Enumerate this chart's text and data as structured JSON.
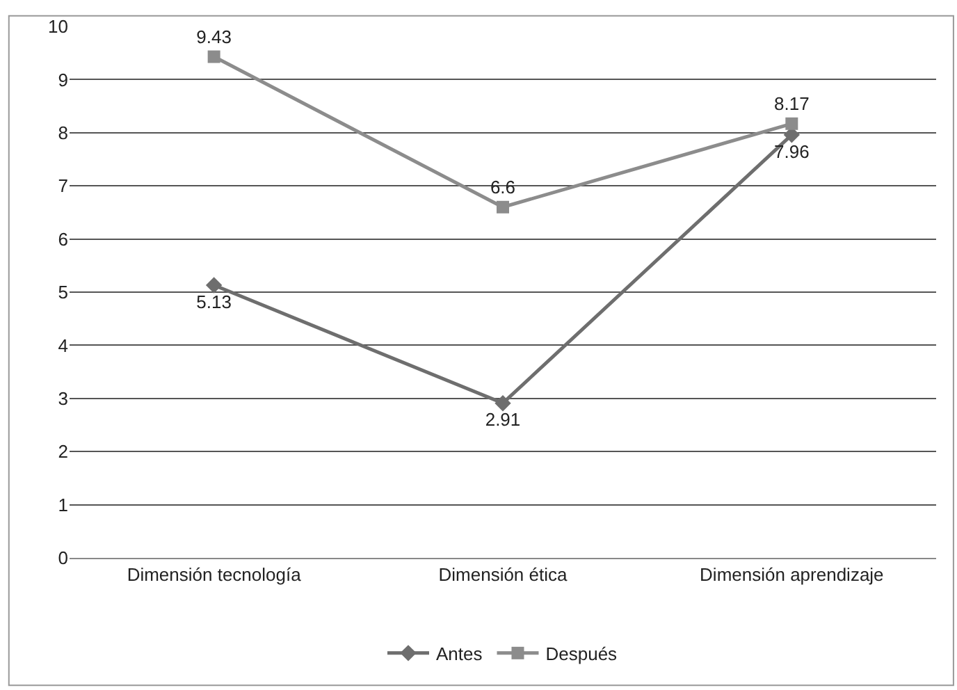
{
  "chart_data": {
    "type": "line",
    "categories": [
      "Dimensión tecnología",
      "Dimensión ética",
      "Dimensión aprendizaje"
    ],
    "series": [
      {
        "name": "Antes",
        "color": "#6e6e6e",
        "values": [
          5.13,
          2.91,
          7.96
        ],
        "marker": "diamond"
      },
      {
        "name": "Después",
        "color": "#8c8c8c",
        "values": [
          9.43,
          6.6,
          8.17
        ],
        "marker": "square"
      }
    ],
    "ylim": [
      0,
      10
    ],
    "yticks": [
      0,
      1,
      2,
      3,
      4,
      5,
      6,
      7,
      8,
      9,
      10
    ],
    "grid": "y",
    "legend": "bottom",
    "data_labels": true,
    "line_style": "solid"
  }
}
